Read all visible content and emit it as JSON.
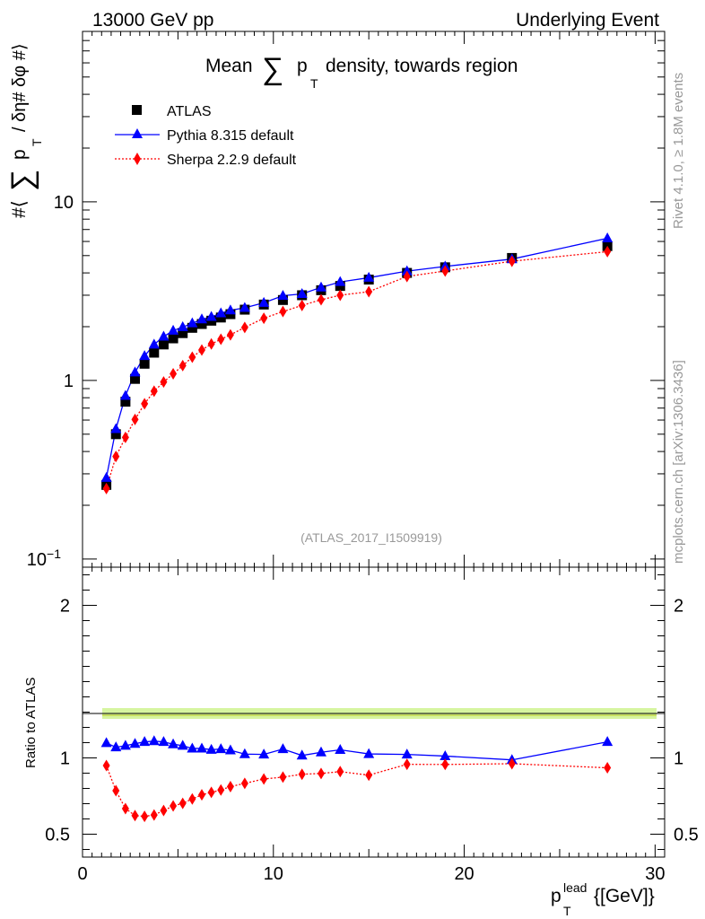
{
  "header": {
    "left": "13000 GeV pp",
    "right": "Underlying Event"
  },
  "side_labels": {
    "rivet": "Rivet 4.1.0, ≥ 1.8M events",
    "mcplots": "mcplots.cern.ch [arXiv:1306.3436]"
  },
  "chart_data": {
    "type": "scatter",
    "title": "Mean ∑ p_T density, towards region",
    "title_parts": {
      "pre": "Mean",
      "sum": "∑",
      "p": "p",
      "sub": "T",
      "post": "density, towards region"
    },
    "analysis_id": "(ATLAS_2017_I1509919)",
    "xlabel": "p_T^lead [[GeV]]",
    "xlabel_parts": {
      "p": "p",
      "sup": "lead",
      "sub": "T",
      "unit": "{[GeV]}"
    },
    "ylabel": "#⟨ ∑ p_T / δη# δφ #⟩",
    "ylabel_parts": {
      "pre": "#⟨",
      "sum": "∑",
      "p": "p",
      "sub": "T",
      "post": "/ δη# δφ #⟩"
    },
    "ratio_ylabel": "Ratio to ATLAS",
    "xlim": [
      0,
      30.5
    ],
    "ylim": [
      0.09,
      90
    ],
    "yscale": "log",
    "ratio_ylim": [
      0.35,
      2.25
    ],
    "x_ticks": [
      0,
      10,
      20,
      30
    ],
    "y_ticks": [
      {
        "label": "10",
        "value": 10
      },
      {
        "label": "1",
        "value": 1
      },
      {
        "label": "10",
        "sup": "−1",
        "value": 0.1
      }
    ],
    "ratio_ticks": [
      {
        "label": "2",
        "value": 2
      },
      {
        "label": "1",
        "value": 1
      },
      {
        "label": "0.5",
        "value": 0.5
      }
    ],
    "legend": {
      "position": "top-left"
    },
    "series": [
      {
        "name": "ATLAS",
        "color": "#000000",
        "marker": "square",
        "x": [
          1.25,
          1.75,
          2.25,
          2.75,
          3.25,
          3.75,
          4.25,
          4.75,
          5.25,
          5.75,
          6.25,
          6.75,
          7.25,
          7.75,
          8.5,
          9.5,
          10.5,
          11.5,
          12.5,
          13.5,
          15.0,
          17.0,
          19.0,
          22.5,
          27.5
        ],
        "y": [
          0.26,
          0.5,
          0.76,
          1.02,
          1.24,
          1.43,
          1.59,
          1.72,
          1.84,
          1.97,
          2.07,
          2.16,
          2.25,
          2.35,
          2.49,
          2.66,
          2.82,
          3.0,
          3.2,
          3.38,
          3.67,
          4.0,
          4.3,
          4.85,
          5.65
        ]
      },
      {
        "name": "Pythia 8.315 default",
        "color": "#0000ff",
        "marker": "triangle",
        "x": [
          1.25,
          1.75,
          2.25,
          2.75,
          3.25,
          3.75,
          4.25,
          4.75,
          5.25,
          5.75,
          6.25,
          6.75,
          7.25,
          7.75,
          8.5,
          9.5,
          10.5,
          11.5,
          12.5,
          13.5,
          15.0,
          17.0,
          19.0,
          22.5,
          27.5
        ],
        "y": [
          0.285,
          0.535,
          0.82,
          1.11,
          1.37,
          1.59,
          1.76,
          1.9,
          1.99,
          2.09,
          2.2,
          2.27,
          2.38,
          2.47,
          2.55,
          2.72,
          2.98,
          3.05,
          3.32,
          3.56,
          3.76,
          4.09,
          4.35,
          4.78,
          6.25
        ],
        "ratio": [
          1.098,
          1.07,
          1.08,
          1.093,
          1.105,
          1.11,
          1.105,
          1.09,
          1.08,
          1.062,
          1.062,
          1.054,
          1.058,
          1.05,
          1.025,
          1.023,
          1.058,
          1.016,
          1.037,
          1.053,
          1.026,
          1.023,
          1.012,
          0.987,
          1.105
        ]
      },
      {
        "name": "Sherpa 2.2.9 default",
        "color": "#ff0000",
        "marker": "diamond",
        "x": [
          1.25,
          1.75,
          2.25,
          2.75,
          3.25,
          3.75,
          4.25,
          4.75,
          5.25,
          5.75,
          6.25,
          6.75,
          7.25,
          7.75,
          8.5,
          9.5,
          10.5,
          11.5,
          12.5,
          13.5,
          15.0,
          17.0,
          19.0,
          22.5,
          27.5
        ],
        "y": [
          0.248,
          0.375,
          0.48,
          0.605,
          0.74,
          0.87,
          0.98,
          1.09,
          1.21,
          1.35,
          1.48,
          1.6,
          1.7,
          1.8,
          1.98,
          2.23,
          2.43,
          2.63,
          2.83,
          3.0,
          3.14,
          3.82,
          4.1,
          4.65,
          5.26
        ],
        "ratio": [
          0.95,
          0.785,
          0.668,
          0.622,
          0.617,
          0.626,
          0.655,
          0.685,
          0.702,
          0.731,
          0.758,
          0.774,
          0.79,
          0.812,
          0.833,
          0.862,
          0.874,
          0.893,
          0.898,
          0.91,
          0.887,
          0.958,
          0.957,
          0.962,
          0.935
        ]
      }
    ]
  }
}
